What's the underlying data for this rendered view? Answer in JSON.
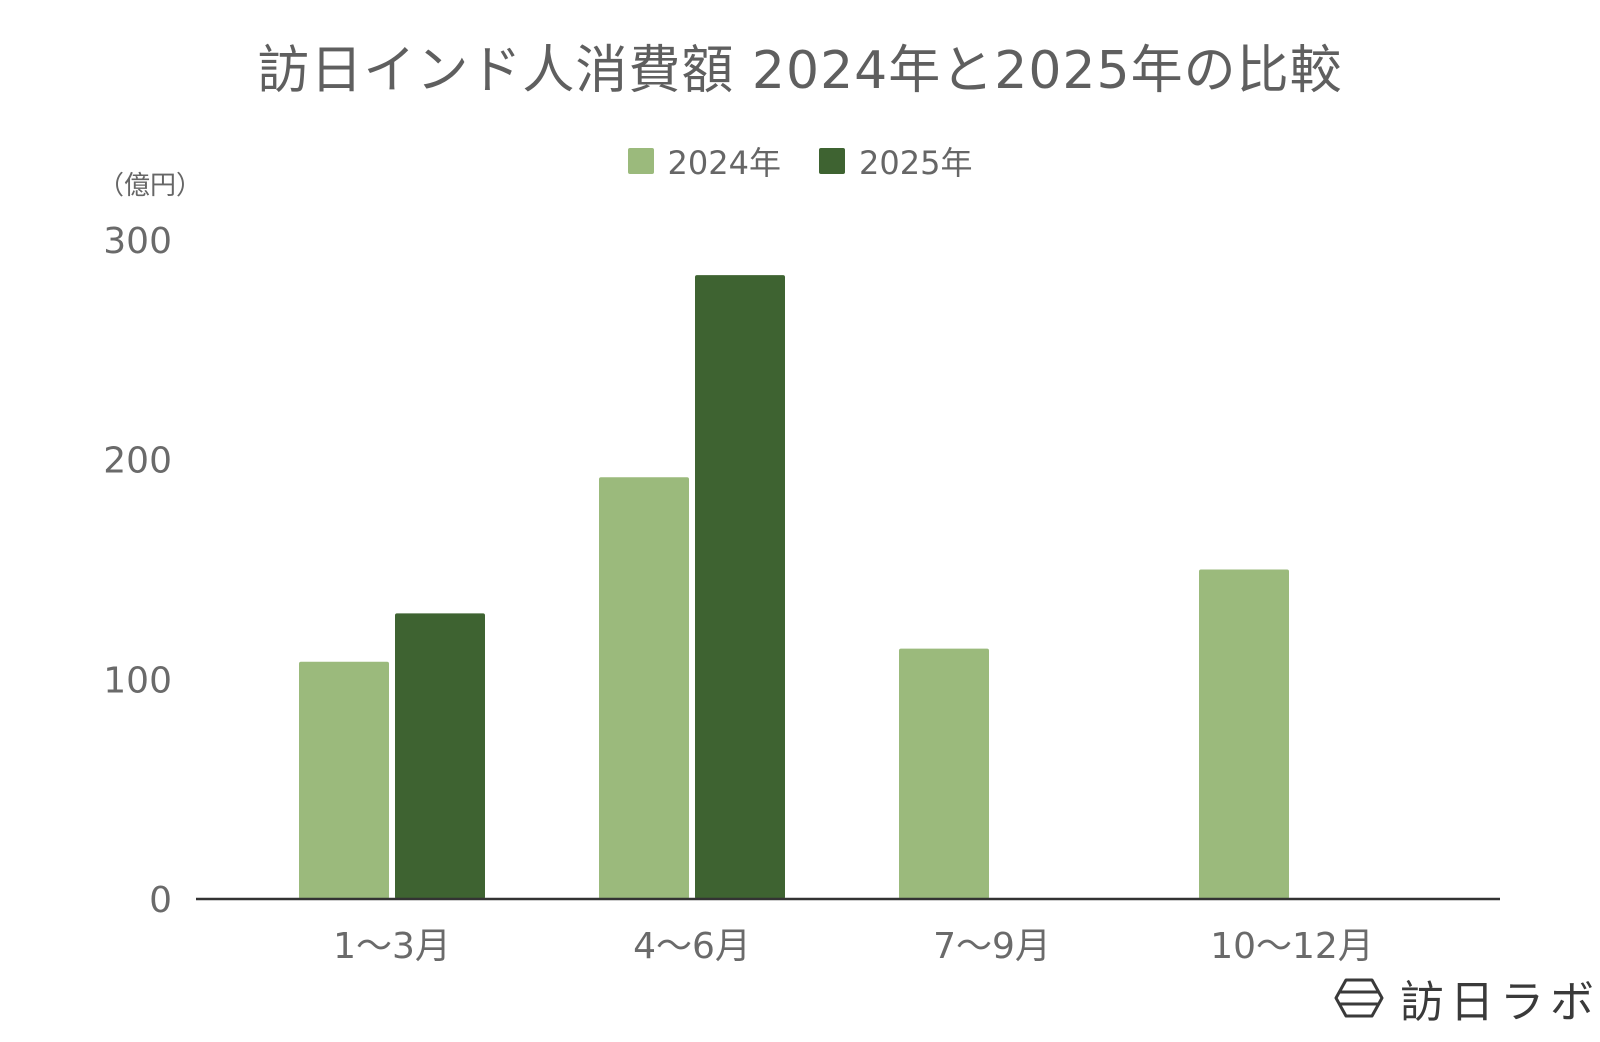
{
  "chart_data": {
    "type": "bar",
    "title": "訪日インド人消費額 2024年と2025年の比較",
    "ylabel": "（億円）",
    "xlabel": "",
    "categories": [
      "1〜3月",
      "4〜6月",
      "7〜9月",
      "10〜12月"
    ],
    "series": [
      {
        "name": "2024年",
        "values": [
          108,
          192,
          114,
          150
        ],
        "color": "#9bba7c"
      },
      {
        "name": "2025年",
        "values": [
          130,
          284,
          null,
          null
        ],
        "color": "#3e6331"
      }
    ],
    "ylim": [
      0,
      300
    ],
    "yticks": [
      "0",
      "100",
      "200",
      "300"
    ],
    "grid": false,
    "legend_position": "top-center"
  },
  "brand": {
    "name": "訪日ラボ",
    "icon": "hexagon-logo-icon"
  }
}
